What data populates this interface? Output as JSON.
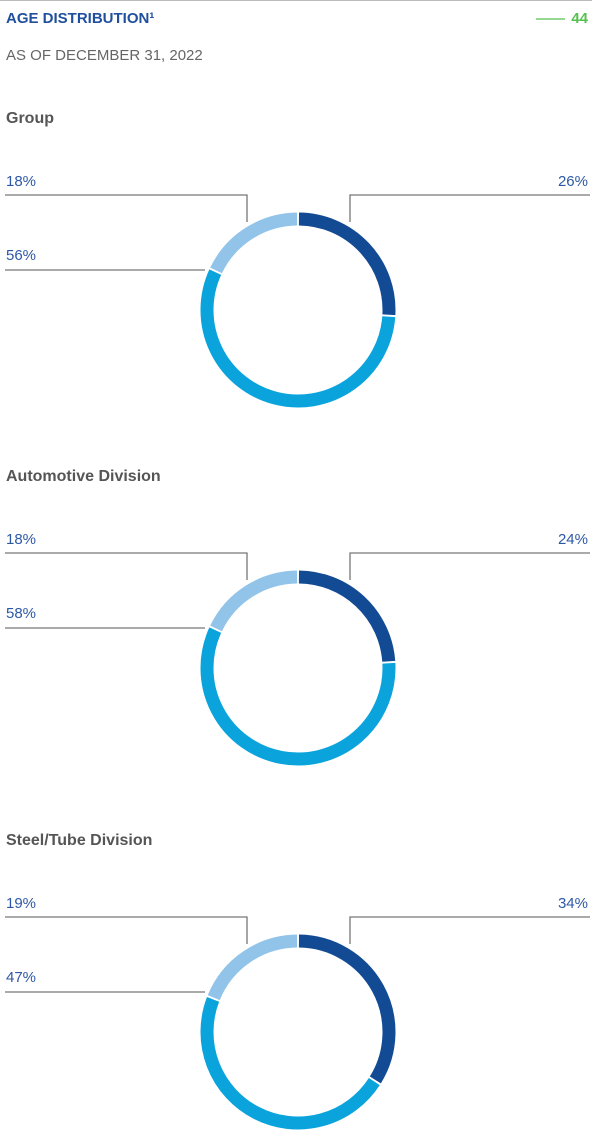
{
  "header": {
    "title": "AGE DISTRIBUTION¹",
    "page": "44",
    "subtitle": "AS OF DECEMBER 31, 2022"
  },
  "chart_data": [
    {
      "type": "donut",
      "title": "Group",
      "values": [
        26,
        56,
        18
      ],
      "value_labels": [
        "26%",
        "56%",
        "18%"
      ],
      "colors": [
        "#124a94",
        "#0aa3dc",
        "#92c4ea"
      ]
    },
    {
      "type": "donut",
      "title": "Automotive Division",
      "values": [
        24,
        58,
        18
      ],
      "value_labels": [
        "24%",
        "58%",
        "18%"
      ],
      "colors": [
        "#124a94",
        "#0aa3dc",
        "#92c4ea"
      ]
    },
    {
      "type": "donut",
      "title": "Steel/Tube Division",
      "values": [
        34,
        47,
        19
      ],
      "value_labels": [
        "34%",
        "47%",
        "19%"
      ],
      "colors": [
        "#124a94",
        "#0aa3dc",
        "#92c4ea"
      ]
    }
  ]
}
